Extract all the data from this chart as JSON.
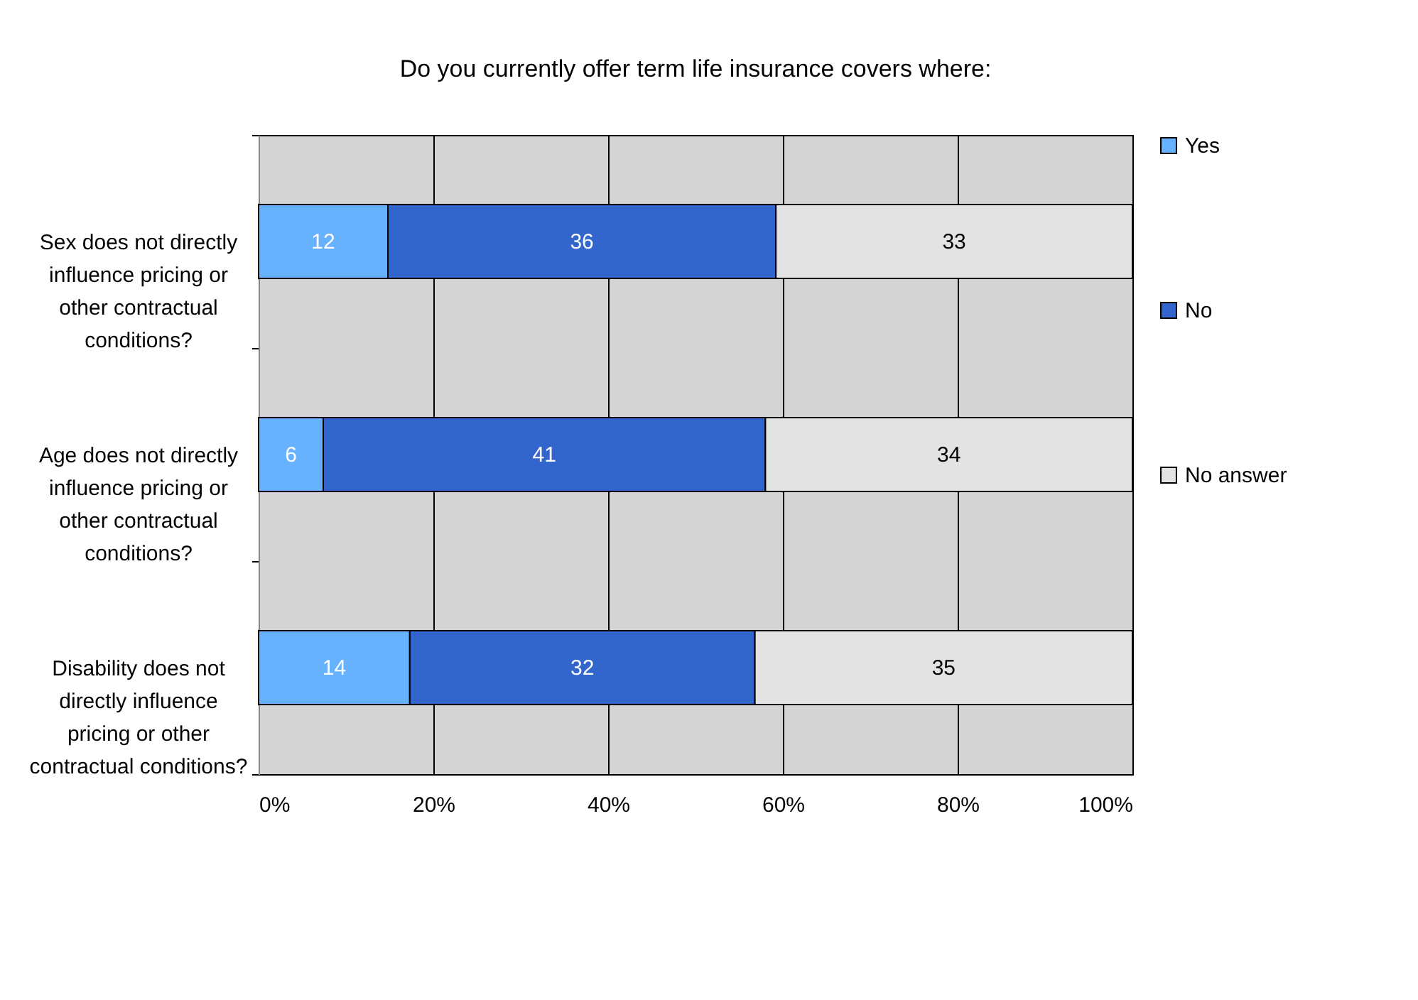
{
  "chart_data": {
    "type": "bar",
    "orientation": "horizontal",
    "stacked": true,
    "title": "Do you currently offer term life insurance covers where:",
    "categories": [
      "Sex does not directly influence pricing or other contractual conditions?",
      "Age does not directly influence pricing or other contractual conditions?",
      "Disability does not directly influence pricing or other contractual conditions?"
    ],
    "series": [
      {
        "name": "Yes",
        "color": "#66b2ff",
        "values": [
          14.8,
          7.4,
          17.3
        ]
      },
      {
        "name": "No",
        "color": "#3366cc",
        "values": [
          44.4,
          50.6,
          39.5
        ]
      },
      {
        "name": "No answer",
        "color": "#e3e3e3",
        "values": [
          40.8,
          42.0,
          43.2
        ]
      }
    ],
    "annotations": [
      "12",
      "36",
      "33",
      "6",
      "41",
      "34",
      "14",
      "32",
      "35"
    ],
    "xlim": [
      0,
      100
    ],
    "xticks": [
      {
        "value": 0,
        "label": "0%"
      },
      {
        "value": 20,
        "label": "20%"
      },
      {
        "value": 40,
        "label": "40%"
      },
      {
        "value": 60,
        "label": "60%"
      },
      {
        "value": 80,
        "label": "80%"
      },
      {
        "value": 100,
        "label": "100%"
      }
    ],
    "grid": "x",
    "legend": "right"
  }
}
